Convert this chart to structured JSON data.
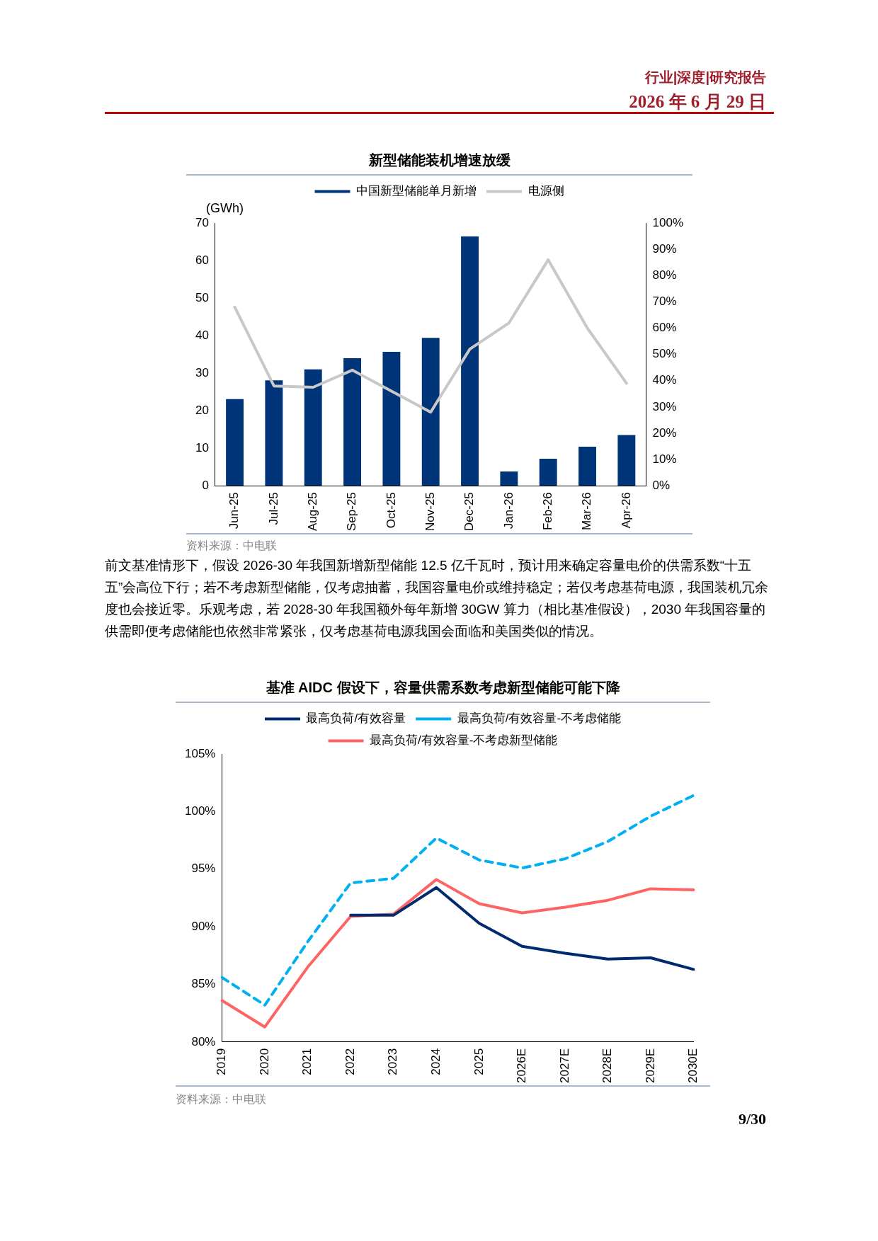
{
  "chart_data": [
    {
      "type": "bar",
      "title": "新型储能装机增速放缓",
      "ylabel": "(GWh)",
      "annotations": [
        "行业|深度|研究报告",
        "2026 年 6 月 29 日",
        "资料来源：中电联",
        "前文基准情形下，假设 2026-30 年我国新增新型储能 12.5 亿千瓦时，预计用来确定容量电价的供需系数“十五五”会高位下行；若不考虑新型储能，仅考虑抽蓄，我国容量电价或维持稳定；若仅考虑基荷电源，我国装机冗余度也会接近零。乐观考虑，若 2028-30 年我国额外每年新增 30GW 算力（相比基准假设），2030 年我国容量的供需即便考虑储能也依然非常紧张，仅考虑基荷电源我国会面临和美国类似的情况。"
      ],
      "categories": [
        "Jun-25",
        "Jul-25",
        "Aug-25",
        "Sep-25",
        "Oct-25",
        "Nov-25",
        "Dec-25",
        "Jan-26",
        "Feb-26",
        "Mar-26",
        "Apr-26"
      ],
      "series": [
        {
          "name": "中国新型储能单月新增",
          "type": "bar",
          "color": "#003478",
          "values": [
            23.1,
            28.1,
            31.0,
            34.0,
            35.7,
            39.4,
            66.4,
            3.8,
            7.2,
            10.4,
            13.5
          ]
        },
        {
          "name": "电源侧",
          "type": "line",
          "axis": "y2",
          "color": "#c8c8c8",
          "values": [
            68,
            38,
            37.5,
            44,
            36,
            28,
            52,
            62,
            86,
            60,
            39
          ]
        }
      ],
      "ylim": [
        0,
        70
      ],
      "yticks": [
        0,
        10,
        20,
        30,
        40,
        50,
        60,
        70
      ],
      "y2lim": [
        0,
        100
      ],
      "y2ticks": [
        {
          "value": 0,
          "label": "0%"
        },
        {
          "value": 10,
          "label": "10%"
        },
        {
          "value": 20,
          "label": "20%"
        },
        {
          "value": 30,
          "label": "30%"
        },
        {
          "value": 40,
          "label": "40%"
        },
        {
          "value": 50,
          "label": "50%"
        },
        {
          "value": 60,
          "label": "60%"
        },
        {
          "value": 70,
          "label": "70%"
        },
        {
          "value": 80,
          "label": "80%"
        },
        {
          "value": 90,
          "label": "90%"
        },
        {
          "value": 100,
          "label": "100%"
        }
      ],
      "legend": "top",
      "grid": false,
      "marker": "none"
    },
    {
      "type": "line",
      "title": "基准 AIDC 假设下，容量供需系数考虑新型储能可能下降",
      "annotations": [
        "资料来源：中电联",
        "9/30"
      ],
      "categories": [
        "2019",
        "2020",
        "2021",
        "2022",
        "2023",
        "2024",
        "2025",
        "2026E",
        "2027E",
        "2028E",
        "2029E",
        "2030E"
      ],
      "series": [
        {
          "name": "最高负荷/有效容量",
          "color": "#002b6e",
          "line_style": "solid",
          "values": [
            null,
            null,
            null,
            91.0,
            91.0,
            93.4,
            90.3,
            88.3,
            87.7,
            87.2,
            87.3,
            86.3
          ]
        },
        {
          "name": "最高负荷/有效容量-不考虑储能",
          "color": "#00b0f0",
          "line_style": "dashed",
          "values": [
            85.6,
            83.2,
            88.7,
            93.8,
            94.2,
            97.7,
            95.8,
            95.1,
            95.9,
            97.4,
            99.6,
            101.4
          ]
        },
        {
          "name": "最高负荷/有效容量-不考虑新型储能",
          "color": "#ff6464",
          "line_style": "solid",
          "values": [
            83.6,
            81.3,
            86.5,
            90.9,
            91.1,
            94.1,
            92.0,
            91.2,
            91.7,
            92.3,
            93.3,
            93.2
          ]
        }
      ],
      "ylim": [
        80,
        105
      ],
      "yticks": [
        {
          "value": 80,
          "label": "80%"
        },
        {
          "value": 85,
          "label": "85%"
        },
        {
          "value": 90,
          "label": "90%"
        },
        {
          "value": 95,
          "label": "95%"
        },
        {
          "value": 100,
          "label": "100%"
        },
        {
          "value": 105,
          "label": "105%"
        }
      ],
      "legend": "top",
      "grid": false,
      "marker": "none"
    }
  ]
}
